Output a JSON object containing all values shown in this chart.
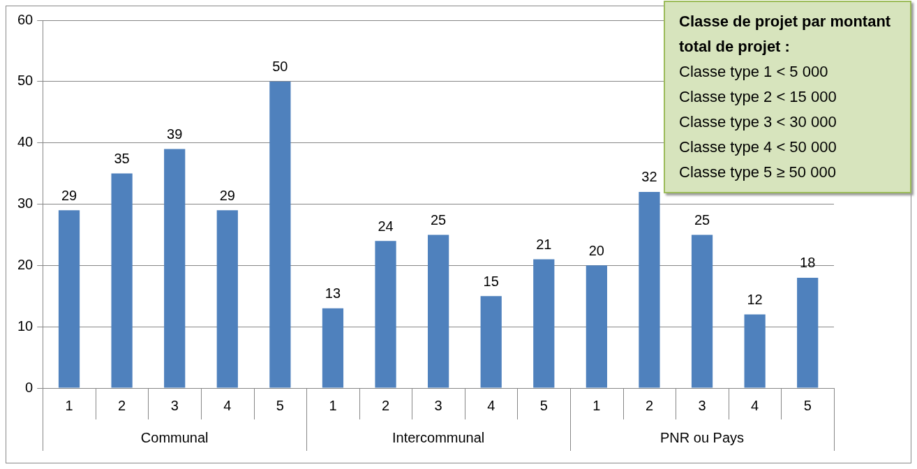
{
  "chart_data": {
    "type": "bar",
    "categories": [
      "1",
      "2",
      "3",
      "4",
      "5",
      "1",
      "2",
      "3",
      "4",
      "5",
      "1",
      "2",
      "3",
      "4",
      "5"
    ],
    "values": [
      29,
      35,
      39,
      29,
      50,
      13,
      24,
      25,
      15,
      21,
      20,
      32,
      25,
      12,
      18
    ],
    "color": "#4f81bd",
    "ylim": [
      0,
      60
    ],
    "yticks": [
      0,
      10,
      20,
      30,
      40,
      50,
      60
    ],
    "grid": "y",
    "legend": false,
    "data_labels": true,
    "annotations": [
      "Communal",
      "Intercommunal",
      "PNR ou Pays",
      "Classe de projet par montant total de projet :",
      "Classe type 1 < 5 000",
      "Classe type 2 < 15 000",
      "Classe type 3 < 30 000",
      "Classe type 4 < 50 000",
      "Classe type 5 ≥ 50 000"
    ]
  }
}
